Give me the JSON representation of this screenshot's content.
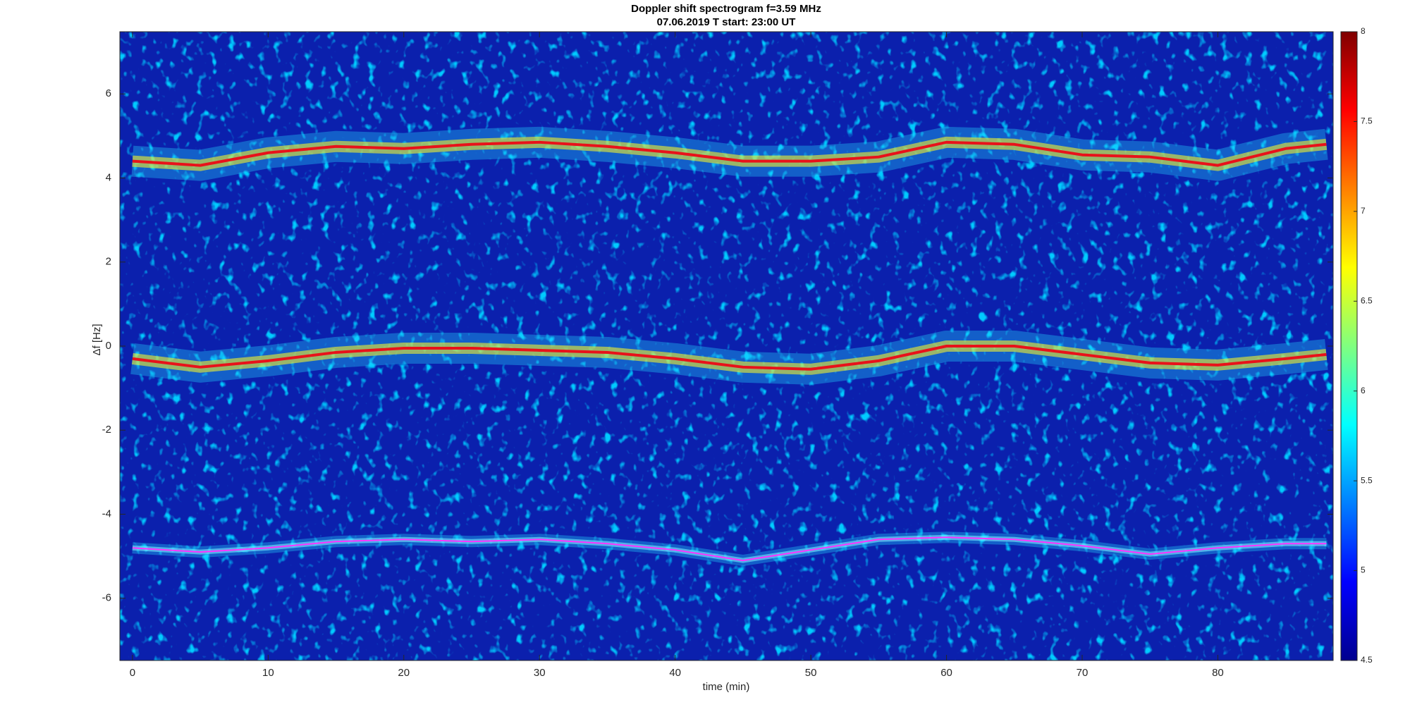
{
  "chart_data": {
    "type": "spectrogram",
    "title": "Doppler shift spectrogram f=3.59 MHz",
    "subtitle": "07.06.2019   T start: 23:00 UT",
    "x_label": "time (min)",
    "y_label": "Δf [Hz]",
    "x": [
      0,
      5,
      10,
      15,
      20,
      25,
      30,
      35,
      40,
      45,
      50,
      55,
      60,
      65,
      70,
      75,
      80,
      85,
      88
    ],
    "series": [
      {
        "color": "#e8121a",
        "values": [
          4.4,
          4.3,
          4.6,
          4.75,
          4.7,
          4.8,
          4.85,
          4.75,
          4.6,
          4.4,
          4.4,
          4.5,
          4.85,
          4.8,
          4.55,
          4.5,
          4.3,
          4.7,
          4.8
        ]
      },
      {
        "color": "#e8121a",
        "values": [
          -0.3,
          -0.5,
          -0.35,
          -0.15,
          -0.05,
          -0.05,
          -0.1,
          -0.15,
          -0.3,
          -0.5,
          -0.55,
          -0.35,
          0,
          0,
          -0.2,
          -0.4,
          -0.45,
          -0.3,
          -0.2
        ]
      },
      {
        "color": "#ff33ff",
        "values": [
          -4.8,
          -4.9,
          -4.8,
          -4.65,
          -4.6,
          -4.65,
          -4.6,
          -4.7,
          -4.85,
          -5.1,
          -4.85,
          -4.6,
          -4.55,
          -4.6,
          -4.75,
          -4.95,
          -4.8,
          -4.7,
          -4.7
        ]
      }
    ],
    "xlim": [
      -0.93,
      88.5
    ],
    "ylim": [
      -7.48,
      7.48
    ],
    "xticks": [
      0,
      10,
      20,
      30,
      40,
      50,
      60,
      70,
      80
    ],
    "yticks": [
      -6,
      -4,
      -2,
      0,
      2,
      4,
      6
    ],
    "colorbar": {
      "lim": [
        4.5,
        8
      ],
      "ticks": [
        4.5,
        5,
        5.5,
        6,
        6.5,
        7,
        7.5,
        8
      ]
    }
  }
}
